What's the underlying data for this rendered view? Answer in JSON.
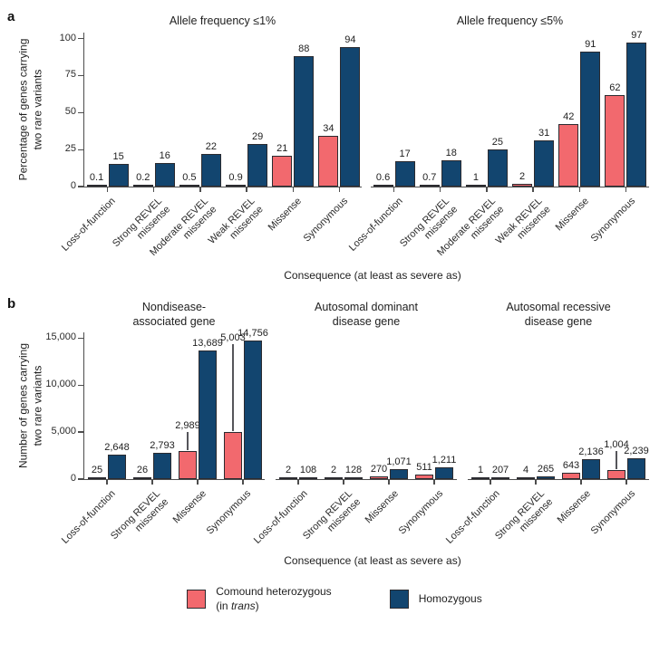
{
  "colors": {
    "compound_het": "#F2696E",
    "homozygous": "#12456F",
    "bar_border": "#2B2B30",
    "axis": "#4D4D4D",
    "text": "#1E1E1E",
    "background": "#FFFFFF"
  },
  "legend": {
    "het_line1": "Comound heterozygous",
    "het_line2_prefix": "(in ",
    "het_line2_italic": "trans",
    "het_line2_suffix": ")",
    "hom_label": "Homozygous"
  },
  "panels": [
    {
      "letter": "a",
      "ylabel": "Percentage of genes carrying\ntwo rare variants",
      "xaxis_title": "Consequence (at least as severe as)",
      "ytick_labels": [
        "0",
        "25",
        "50",
        "75",
        "100"
      ],
      "ytick_values": [
        0,
        25,
        50,
        75,
        100
      ]
    },
    {
      "letter": "b",
      "ylabel": "Number of genes carrying\ntwo rare variants",
      "xaxis_title": "Consequence (at least as severe as)",
      "ytick_labels": [
        "0",
        "5,000",
        "10,000",
        "15,000"
      ],
      "ytick_values": [
        0,
        5000,
        10000,
        15000
      ]
    }
  ],
  "chart_data": [
    {
      "panel": "a",
      "type": "bar",
      "title": "Allele frequency ≤1%",
      "categories": [
        "Loss-of-function",
        "Strong REVEL\nmissense",
        "Moderate REVEL\nmissense",
        "Weak REVEL\nmissense",
        "Missense",
        "Synonymous"
      ],
      "xlabel": "Consequence (at least as severe as)",
      "ylabel": "Percentage of genes carrying two rare variants",
      "ylim": [
        0,
        100
      ],
      "grid": false,
      "series": [
        {
          "name": "Comound heterozygous (in trans)",
          "values": [
            0.1,
            0.2,
            0.5,
            0.9,
            21,
            34
          ],
          "labels": [
            "0.1",
            "0.2",
            "0.5",
            "0.9",
            "21",
            "34"
          ]
        },
        {
          "name": "Homozygous",
          "values": [
            15,
            16,
            22,
            29,
            88,
            94
          ],
          "labels": [
            "15",
            "16",
            "22",
            "29",
            "88",
            "94"
          ]
        }
      ]
    },
    {
      "panel": "a",
      "type": "bar",
      "title": "Allele frequency ≤5%",
      "categories": [
        "Loss-of-function",
        "Strong REVEL\nmissense",
        "Moderate REVEL\nmissense",
        "Weak REVEL\nmissense",
        "Missense",
        "Synonymous"
      ],
      "xlabel": "Consequence (at least as severe as)",
      "ylabel": "Percentage of genes carrying two rare variants",
      "ylim": [
        0,
        100
      ],
      "grid": false,
      "series": [
        {
          "name": "Comound heterozygous (in trans)",
          "values": [
            0.6,
            0.7,
            1,
            2,
            42,
            62
          ],
          "labels": [
            "0.6",
            "0.7",
            "1",
            "2",
            "42",
            "62"
          ]
        },
        {
          "name": "Homozygous",
          "values": [
            17,
            18,
            25,
            31,
            91,
            97
          ],
          "labels": [
            "17",
            "18",
            "25",
            "31",
            "91",
            "97"
          ]
        }
      ]
    },
    {
      "panel": "b",
      "type": "bar",
      "title": "Nondisease-\nassociated gene",
      "categories": [
        "Loss-of-function",
        "Strong REVEL\nmissense",
        "Missense",
        "Synonymous"
      ],
      "xlabel": "Consequence (at least as severe as)",
      "ylabel": "Number of genes carrying two rare variants",
      "ylim": [
        0,
        15000
      ],
      "grid": false,
      "series": [
        {
          "name": "Comound heterozygous (in trans)",
          "values": [
            25,
            26,
            2989,
            5003
          ],
          "labels": [
            "25",
            "26",
            "2,989",
            "5,003"
          ],
          "leaders": {
            "2": 20,
            "3": 96
          }
        },
        {
          "name": "Homozygous",
          "values": [
            2648,
            2793,
            13689,
            14756
          ],
          "labels": [
            "2,648",
            "2,793",
            "13,689",
            "14,756"
          ]
        }
      ]
    },
    {
      "panel": "b",
      "type": "bar",
      "title": "Autosomal dominant\ndisease gene",
      "categories": [
        "Loss-of-function",
        "Strong REVEL\nmissense",
        "Missense",
        "Synonymous"
      ],
      "xlabel": "Consequence (at least as severe as)",
      "ylabel": "Number of genes carrying two rare variants",
      "ylim": [
        0,
        15000
      ],
      "grid": false,
      "series": [
        {
          "name": "Comound heterozygous (in trans)",
          "values": [
            2,
            2,
            270,
            511
          ],
          "labels": [
            "2",
            "2",
            "270",
            "511"
          ]
        },
        {
          "name": "Homozygous",
          "values": [
            108,
            128,
            1071,
            1211
          ],
          "labels": [
            "108",
            "128",
            "1,071",
            "1,211"
          ]
        }
      ]
    },
    {
      "panel": "b",
      "type": "bar",
      "title": "Autosomal recessive\ndisease gene",
      "categories": [
        "Loss-of-function",
        "Strong REVEL\nmissense",
        "Missense",
        "Synonymous"
      ],
      "xlabel": "Consequence (at least as severe as)",
      "ylabel": "Number of genes carrying two rare variants",
      "ylim": [
        0,
        15000
      ],
      "grid": false,
      "series": [
        {
          "name": "Comound heterozygous (in trans)",
          "values": [
            1,
            4,
            643,
            1004
          ],
          "labels": [
            "1",
            "4",
            "643",
            "1,004"
          ],
          "leaders": {
            "3": 20
          }
        },
        {
          "name": "Homozygous",
          "values": [
            207,
            265,
            2136,
            2239
          ],
          "labels": [
            "207",
            "265",
            "2,136",
            "2,239"
          ]
        }
      ]
    }
  ]
}
